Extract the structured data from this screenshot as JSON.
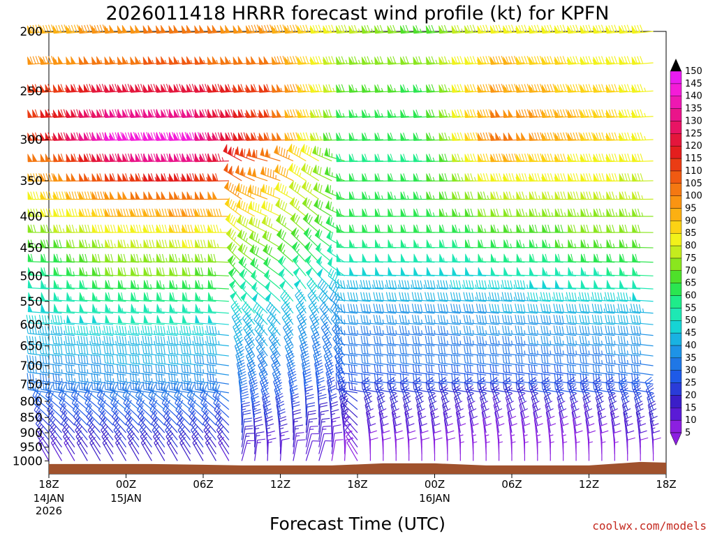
{
  "chart_data": {
    "type": "wind-barb time-height cross-section",
    "title": "2026011418 HRRR forecast wind profile (kt) for KPFN",
    "xlabel": "Forecast Time (UTC)",
    "ylabel": "",
    "y_axis": {
      "unit": "hPa",
      "scale": "log",
      "range": [
        1050,
        200
      ],
      "tick_labels": [
        "200",
        "250",
        "300",
        "350",
        "400",
        "450",
        "500",
        "550",
        "600",
        "650",
        "700",
        "750",
        "800",
        "850",
        "900",
        "950",
        "1000"
      ]
    },
    "x_axis": {
      "tick_labels": [
        "18Z",
        "00Z",
        "06Z",
        "12Z",
        "18Z",
        "00Z",
        "06Z",
        "12Z",
        "18Z"
      ],
      "date_labels": [
        {
          "tick": "18Z",
          "lines": [
            "14JAN",
            "2026"
          ]
        },
        {
          "tick": "00Z",
          "lines": [
            "15JAN"
          ]
        },
        {
          "tick": "00Z",
          "lines": [
            "16JAN"
          ]
        }
      ],
      "start": "2026-01-14 18Z",
      "end": "2026-01-16 18Z",
      "hours": [
        0,
        48
      ]
    },
    "colorbar": {
      "unit": "kt",
      "labels": [
        "5",
        "10",
        "15",
        "20",
        "25",
        "30",
        "35",
        "40",
        "45",
        "50",
        "55",
        "60",
        "65",
        "70",
        "75",
        "80",
        "85",
        "90",
        "95",
        "100",
        "105",
        "110",
        "115",
        "120",
        "125",
        "130",
        "135",
        "140",
        "145",
        "150"
      ],
      "colors": [
        "#8c1fe0",
        "#5a1bd6",
        "#3b1ec8",
        "#2a3cd8",
        "#1e5ae8",
        "#1f77e6",
        "#1e93e6",
        "#19b2e2",
        "#16d4d4",
        "#1ee8b4",
        "#1fec8a",
        "#2ae650",
        "#4ee02a",
        "#8ae61e",
        "#c4ec1e",
        "#f2f21a",
        "#fcd214",
        "#fcb012",
        "#fa9412",
        "#f47812",
        "#f05a12",
        "#ea3c14",
        "#e41e1e",
        "#e4163c",
        "#e81464",
        "#ea148a",
        "#ee18b2",
        "#f41cd8",
        "#ea1cf0"
      ],
      "extend": "both"
    },
    "wind_profile": {
      "forecast_hour_spacing": 1,
      "levels_hpa": [
        200,
        225,
        250,
        275,
        300,
        325,
        350,
        375,
        400,
        425,
        450,
        475,
        500,
        525,
        550,
        575,
        600,
        625,
        650,
        675,
        700,
        725,
        750,
        775,
        800,
        825,
        850,
        875,
        900,
        925,
        950,
        975,
        1000
      ],
      "speed_kt_by_level_and_phase": {
        "note": "approximate speeds read from barb colors; columns are forecast hours 0,6,12,18,24,30,36,42,48",
        "200": [
          90,
          98,
          102,
          96,
          78,
          66,
          84,
          84,
          80
        ],
        "225": [
          95,
          104,
          106,
          100,
          74,
          70,
          92,
          84,
          80
        ],
        "250": [
          110,
          124,
          124,
          110,
          68,
          64,
          96,
          88,
          82
        ],
        "275": [
          112,
          132,
          132,
          110,
          64,
          62,
          100,
          90,
          82
        ],
        "300": [
          112,
          142,
          140,
          108,
          60,
          60,
          104,
          90,
          82
        ],
        "325": [
          100,
          128,
          134,
          104,
          58,
          58,
          92,
          84,
          80
        ],
        "350": [
          92,
          112,
          118,
          96,
          60,
          62,
          84,
          82,
          78
        ],
        "375": [
          84,
          98,
          104,
          88,
          62,
          64,
          76,
          78,
          76
        ],
        "400": [
          78,
          90,
          96,
          82,
          62,
          62,
          72,
          74,
          74
        ],
        "425": [
          72,
          82,
          86,
          76,
          60,
          60,
          66,
          70,
          70
        ],
        "450": [
          66,
          76,
          80,
          72,
          56,
          56,
          62,
          66,
          66
        ],
        "475": [
          60,
          72,
          74,
          68,
          52,
          52,
          56,
          60,
          60
        ],
        "500": [
          56,
          70,
          70,
          62,
          48,
          48,
          50,
          54,
          56
        ],
        "525": [
          52,
          62,
          64,
          56,
          44,
          44,
          46,
          50,
          52
        ],
        "550": [
          50,
          58,
          58,
          52,
          40,
          40,
          44,
          46,
          48
        ],
        "575": [
          48,
          54,
          54,
          48,
          38,
          38,
          40,
          42,
          44
        ],
        "600": [
          46,
          50,
          50,
          44,
          36,
          36,
          38,
          40,
          42
        ],
        "625": [
          44,
          46,
          46,
          42,
          34,
          34,
          36,
          38,
          40
        ],
        "650": [
          42,
          44,
          44,
          40,
          32,
          32,
          34,
          36,
          38
        ],
        "675": [
          40,
          42,
          42,
          38,
          30,
          30,
          32,
          34,
          36
        ],
        "700": [
          38,
          40,
          40,
          36,
          30,
          30,
          30,
          32,
          34
        ],
        "725": [
          36,
          38,
          38,
          34,
          28,
          28,
          28,
          30,
          32
        ],
        "750": [
          34,
          36,
          36,
          32,
          26,
          26,
          26,
          28,
          30
        ],
        "775": [
          32,
          34,
          34,
          30,
          24,
          24,
          24,
          26,
          28
        ],
        "800": [
          30,
          32,
          32,
          28,
          22,
          22,
          22,
          24,
          26
        ],
        "825": [
          28,
          30,
          30,
          26,
          20,
          20,
          18,
          22,
          24
        ],
        "850": [
          26,
          28,
          28,
          24,
          18,
          18,
          14,
          18,
          22
        ],
        "875": [
          24,
          26,
          26,
          22,
          16,
          16,
          12,
          14,
          20
        ],
        "900": [
          22,
          24,
          24,
          20,
          14,
          14,
          10,
          12,
          18
        ],
        "925": [
          20,
          22,
          22,
          18,
          12,
          12,
          8,
          10,
          16
        ],
        "950": [
          18,
          20,
          20,
          16,
          10,
          10,
          8,
          8,
          14
        ],
        "975": [
          16,
          18,
          18,
          14,
          8,
          8,
          6,
          8,
          12
        ],
        "1000": [
          14,
          16,
          16,
          12,
          8,
          8,
          6,
          6,
          10
        ]
      }
    },
    "surface_color": "#a0522d"
  },
  "credit": "coolwx.com/models"
}
